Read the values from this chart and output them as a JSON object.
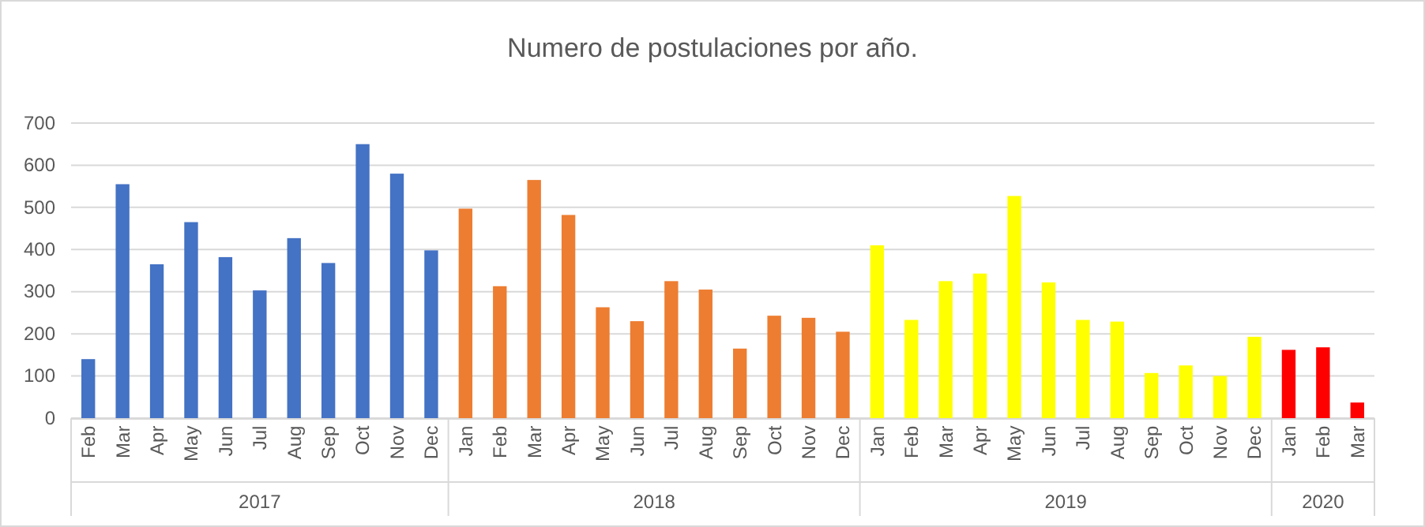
{
  "chart_data": {
    "type": "bar",
    "title": "Numero de postulaciones por año.",
    "categories": [
      "Feb",
      "Mar",
      "Apr",
      "May",
      "Jun",
      "Jul",
      "Aug",
      "Sep",
      "Oct",
      "Nov",
      "Dec",
      "Jan",
      "Feb",
      "Mar",
      "Apr",
      "May",
      "Jun",
      "Jul",
      "Aug",
      "Sep",
      "Oct",
      "Nov",
      "Dec",
      "Jan",
      "Feb",
      "Mar",
      "Apr",
      "May",
      "Jun",
      "Jul",
      "Aug",
      "Sep",
      "Oct",
      "Nov",
      "Dec",
      "Jan",
      "Feb",
      "Mar"
    ],
    "series": [
      {
        "color": "#4472c4",
        "values": [
          140,
          555,
          365,
          465,
          382,
          303,
          427,
          368,
          650,
          580,
          398,
          null,
          null,
          null,
          null,
          null,
          null,
          null,
          null,
          null,
          null,
          null,
          null,
          null,
          null,
          null,
          null,
          null,
          null,
          null,
          null,
          null,
          null,
          null,
          null,
          null,
          null,
          null
        ]
      },
      {
        "color": "#ed7d31",
        "values": [
          null,
          null,
          null,
          null,
          null,
          null,
          null,
          null,
          null,
          null,
          null,
          497,
          313,
          565,
          482,
          263,
          230,
          325,
          305,
          165,
          243,
          238,
          205,
          null,
          null,
          null,
          null,
          null,
          null,
          null,
          null,
          null,
          null,
          null,
          null,
          null,
          null,
          null
        ]
      },
      {
        "color": "#ffff00",
        "values": [
          null,
          null,
          null,
          null,
          null,
          null,
          null,
          null,
          null,
          null,
          null,
          null,
          null,
          null,
          null,
          null,
          null,
          null,
          null,
          null,
          null,
          null,
          null,
          410,
          233,
          325,
          343,
          527,
          322,
          233,
          229,
          107,
          125,
          100,
          193,
          null,
          null,
          null
        ]
      },
      {
        "color": "#ff0000",
        "values": [
          null,
          null,
          null,
          null,
          null,
          null,
          null,
          null,
          null,
          null,
          null,
          null,
          null,
          null,
          null,
          null,
          null,
          null,
          null,
          null,
          null,
          null,
          null,
          null,
          null,
          null,
          null,
          null,
          null,
          null,
          null,
          null,
          null,
          null,
          null,
          162,
          168,
          37
        ]
      }
    ],
    "ylim": [
      0,
      700
    ],
    "yticks": [
      0,
      100,
      200,
      300,
      400,
      500,
      600,
      700
    ],
    "grid": "y",
    "annotations": [
      "2017",
      "2018",
      "2019",
      "2020"
    ]
  }
}
